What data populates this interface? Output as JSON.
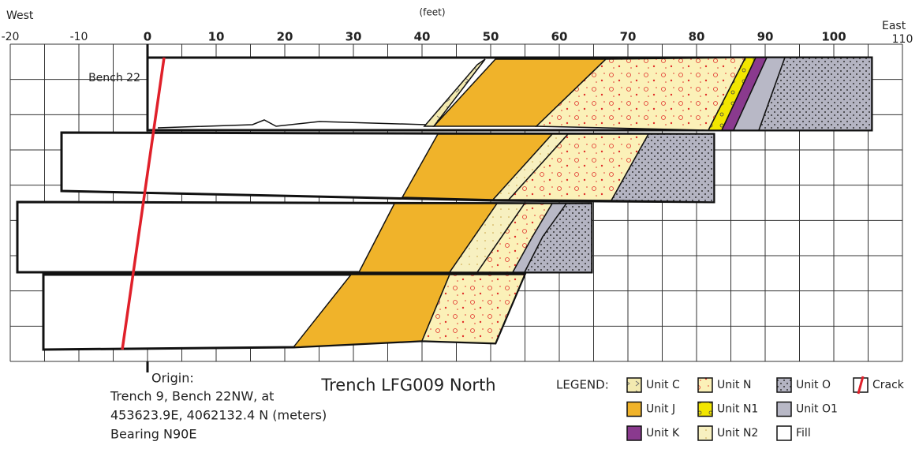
{
  "axis": {
    "west": "West",
    "east": "East",
    "unit": "(feet)",
    "ticks": [
      "-20",
      "-10",
      "0",
      "10",
      "20",
      "30",
      "40",
      "50",
      "60",
      "70",
      "80",
      "90",
      "100",
      "110"
    ]
  },
  "bench_label": "Bench 22",
  "origin": {
    "heading": "Origin:",
    "lines": [
      "Trench 9,  Bench 22NW, at",
      "453623.9E, 4062132.4 N (meters)",
      "Bearing N90E"
    ]
  },
  "title": "Trench LFG009 North",
  "legend": {
    "label": "LEGEND:",
    "items": [
      "Unit C",
      "Unit J",
      "Unit K",
      "Unit N",
      "Unit N1",
      "Unit N2",
      "Unit O",
      "Unit O1",
      "Fill",
      "Crack"
    ]
  }
}
